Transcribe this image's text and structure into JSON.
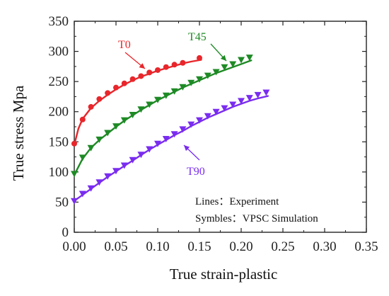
{
  "chart_data": {
    "type": "line",
    "xlabel": "True strain-plastic",
    "ylabel": "True stress Mpa",
    "xlim": [
      0,
      0.35
    ],
    "ylim": [
      0,
      350
    ],
    "x_ticks": [
      "0.00",
      "0.05",
      "0.10",
      "0.15",
      "0.20",
      "0.25",
      "0.30",
      "0.35"
    ],
    "y_ticks": [
      "0",
      "50",
      "100",
      "150",
      "200",
      "250",
      "300",
      "350"
    ],
    "grid": false,
    "legend": [
      "Lines：Experiment",
      "Symbles：VPSC Simulation"
    ],
    "series": [
      {
        "name": "T0",
        "color": "#e8262b",
        "marker": "circle",
        "line": [
          [
            0.0,
            145
          ],
          [
            0.005,
            172
          ],
          [
            0.01,
            188
          ],
          [
            0.02,
            206
          ],
          [
            0.03,
            218
          ],
          [
            0.04,
            228
          ],
          [
            0.05,
            237
          ],
          [
            0.06,
            245
          ],
          [
            0.07,
            252
          ],
          [
            0.08,
            258
          ],
          [
            0.09,
            263
          ],
          [
            0.1,
            268
          ],
          [
            0.11,
            272
          ],
          [
            0.12,
            276
          ],
          [
            0.13,
            280
          ],
          [
            0.14,
            283
          ],
          [
            0.152,
            286
          ]
        ],
        "points": [
          [
            0.0,
            147
          ],
          [
            0.01,
            187
          ],
          [
            0.02,
            208
          ],
          [
            0.03,
            221
          ],
          [
            0.04,
            231
          ],
          [
            0.05,
            240
          ],
          [
            0.06,
            247
          ],
          [
            0.07,
            254
          ],
          [
            0.08,
            259
          ],
          [
            0.09,
            265
          ],
          [
            0.1,
            269
          ],
          [
            0.11,
            274
          ],
          [
            0.12,
            278
          ],
          [
            0.13,
            281
          ],
          [
            0.15,
            289
          ]
        ]
      },
      {
        "name": "T45",
        "color": "#1e8a25",
        "marker": "triangle-down",
        "line": [
          [
            0.0,
            95
          ],
          [
            0.01,
            122
          ],
          [
            0.02,
            140
          ],
          [
            0.03,
            153
          ],
          [
            0.04,
            164
          ],
          [
            0.05,
            175
          ],
          [
            0.06,
            185
          ],
          [
            0.07,
            194
          ],
          [
            0.08,
            203
          ],
          [
            0.09,
            211
          ],
          [
            0.1,
            219
          ],
          [
            0.11,
            226
          ],
          [
            0.12,
            233
          ],
          [
            0.13,
            240
          ],
          [
            0.14,
            246
          ],
          [
            0.15,
            252
          ],
          [
            0.16,
            258
          ],
          [
            0.17,
            264
          ],
          [
            0.18,
            269
          ],
          [
            0.19,
            274
          ],
          [
            0.2,
            279
          ],
          [
            0.212,
            285
          ]
        ],
        "points": [
          [
            0.0,
            97
          ],
          [
            0.01,
            124
          ],
          [
            0.02,
            140
          ],
          [
            0.03,
            154
          ],
          [
            0.04,
            165
          ],
          [
            0.05,
            176
          ],
          [
            0.06,
            186
          ],
          [
            0.07,
            195
          ],
          [
            0.08,
            204
          ],
          [
            0.09,
            212
          ],
          [
            0.1,
            220
          ],
          [
            0.11,
            227
          ],
          [
            0.12,
            234
          ],
          [
            0.13,
            241
          ],
          [
            0.14,
            248
          ],
          [
            0.15,
            254
          ],
          [
            0.16,
            260
          ],
          [
            0.17,
            266
          ],
          [
            0.18,
            274
          ],
          [
            0.19,
            279
          ],
          [
            0.2,
            286
          ],
          [
            0.21,
            290
          ]
        ]
      },
      {
        "name": "T90",
        "color": "#7a2cf0",
        "marker": "triangle-down",
        "line": [
          [
            0.0,
            52
          ],
          [
            0.01,
            62
          ],
          [
            0.02,
            72
          ],
          [
            0.03,
            82
          ],
          [
            0.04,
            92
          ],
          [
            0.05,
            101
          ],
          [
            0.06,
            110
          ],
          [
            0.07,
            119
          ],
          [
            0.08,
            128
          ],
          [
            0.09,
            137
          ],
          [
            0.1,
            145
          ],
          [
            0.11,
            153
          ],
          [
            0.12,
            161
          ],
          [
            0.13,
            168
          ],
          [
            0.14,
            176
          ],
          [
            0.15,
            183
          ],
          [
            0.16,
            190
          ],
          [
            0.17,
            196
          ],
          [
            0.18,
            202
          ],
          [
            0.19,
            208
          ],
          [
            0.2,
            213
          ],
          [
            0.21,
            218
          ],
          [
            0.22,
            222
          ],
          [
            0.232,
            226
          ]
        ],
        "points": [
          [
            0.0,
            52
          ],
          [
            0.01,
            64
          ],
          [
            0.02,
            73
          ],
          [
            0.03,
            83
          ],
          [
            0.04,
            93
          ],
          [
            0.05,
            102
          ],
          [
            0.06,
            111
          ],
          [
            0.07,
            120
          ],
          [
            0.08,
            129
          ],
          [
            0.09,
            138
          ],
          [
            0.1,
            147
          ],
          [
            0.11,
            155
          ],
          [
            0.12,
            163
          ],
          [
            0.13,
            171
          ],
          [
            0.14,
            179
          ],
          [
            0.15,
            186
          ],
          [
            0.16,
            193
          ],
          [
            0.17,
            200
          ],
          [
            0.18,
            206
          ],
          [
            0.19,
            212
          ],
          [
            0.2,
            218
          ],
          [
            0.21,
            223
          ],
          [
            0.22,
            228
          ],
          [
            0.23,
            232
          ]
        ]
      }
    ]
  }
}
